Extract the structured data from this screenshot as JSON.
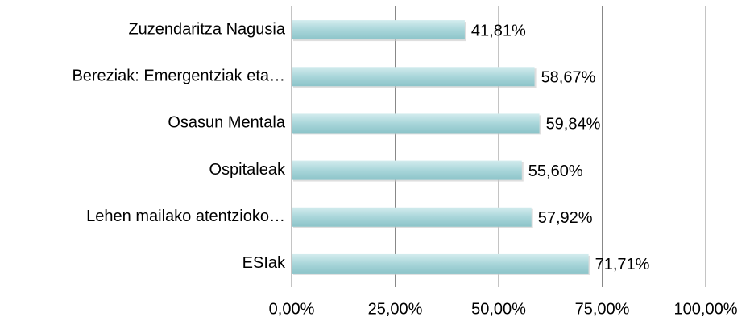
{
  "chart_data": {
    "type": "bar",
    "orientation": "horizontal",
    "categories": [
      "Zuzendaritza Nagusia",
      "Bereziak: Emergentziak eta…",
      "Osasun Mentala",
      "Ospitaleak",
      "Lehen mailako atentzioko…",
      "ESIak"
    ],
    "values": [
      41.81,
      58.67,
      59.84,
      55.6,
      57.92,
      71.71
    ],
    "value_labels": [
      "41,81%",
      "58,67%",
      "59,84%",
      "55,60%",
      "57,92%",
      "71,71%"
    ],
    "color": "#a9d6da",
    "xlim": [
      0,
      100
    ],
    "xticks": [
      {
        "value": 0,
        "label": "0,00%"
      },
      {
        "value": 25,
        "label": "25,00%"
      },
      {
        "value": 50,
        "label": "50,00%"
      },
      {
        "value": 75,
        "label": "75,00%"
      },
      {
        "value": 100,
        "label": "100,00%"
      }
    ],
    "grid": true
  }
}
